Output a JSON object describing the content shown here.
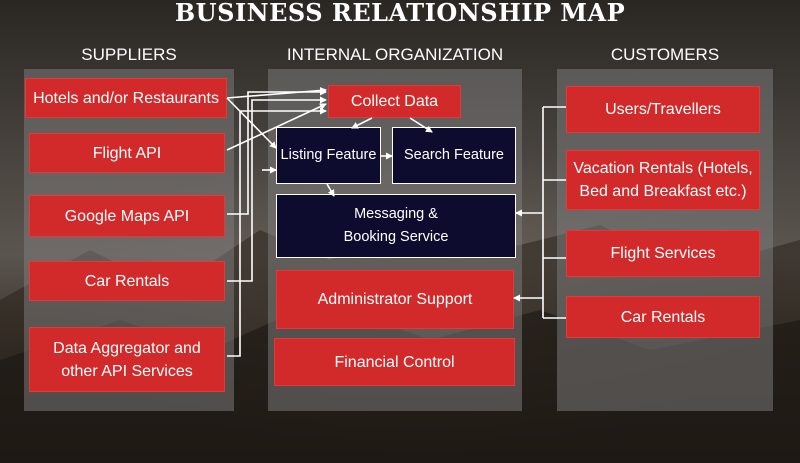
{
  "title": "BUSINESS RELATIONSHIP MAP",
  "columns": {
    "suppliers": "SUPPLIERS",
    "internal": "INTERNAL ORGANIZATION",
    "customers": "CUSTOMERS"
  },
  "suppliers": [
    "Hotels and/or Restaurants",
    "Flight API",
    "Google Maps API",
    "Car Rentals",
    "Data Aggregator and other API Services"
  ],
  "internal": {
    "collect_data": "Collect Data",
    "listing_feature": "Listing Feature",
    "search_feature": "Search Feature",
    "messaging_booking": "Messaging & Booking Service",
    "admin_support": "Administrator Support",
    "financial_control": "Financial Control"
  },
  "customers": [
    "Users/Travellers",
    "Vacation Rentals (Hotels, Bed and Breakfast etc.)",
    "Flight Services",
    "Car Rentals"
  ],
  "colors": {
    "box_red": "#d22a2a",
    "box_navy": "#0d0b2e",
    "panel": "rgba(128,128,128,0.5)",
    "connector": "#ffffff"
  }
}
